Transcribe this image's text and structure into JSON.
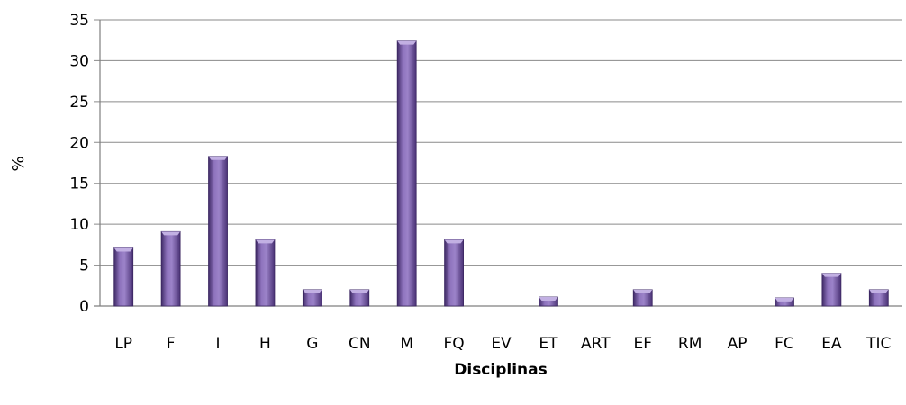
{
  "chart_data": {
    "type": "bar",
    "xlabel": "Disciplinas",
    "ylabel": "%",
    "ylim": [
      0,
      35
    ],
    "yticks": [
      "0",
      "5",
      "10",
      "15",
      "20",
      "25",
      "30",
      "35"
    ],
    "grid": true,
    "categories": [
      "LP",
      "F",
      "I",
      "H",
      "G",
      "CN",
      "M",
      "FQ",
      "EV",
      "ET",
      "ART",
      "EF",
      "RM",
      "AP",
      "FC",
      "EA",
      "TIC"
    ],
    "values": [
      7.1,
      9.1,
      18.3,
      8.1,
      2.0,
      2.0,
      32.4,
      8.1,
      0,
      1.1,
      0,
      2.0,
      0,
      0,
      1.0,
      4.0,
      2.0
    ],
    "colors": {
      "bar": "#6b4e9b",
      "bar_light": "#9c83c9",
      "bar_dark": "#3f2a66"
    }
  }
}
